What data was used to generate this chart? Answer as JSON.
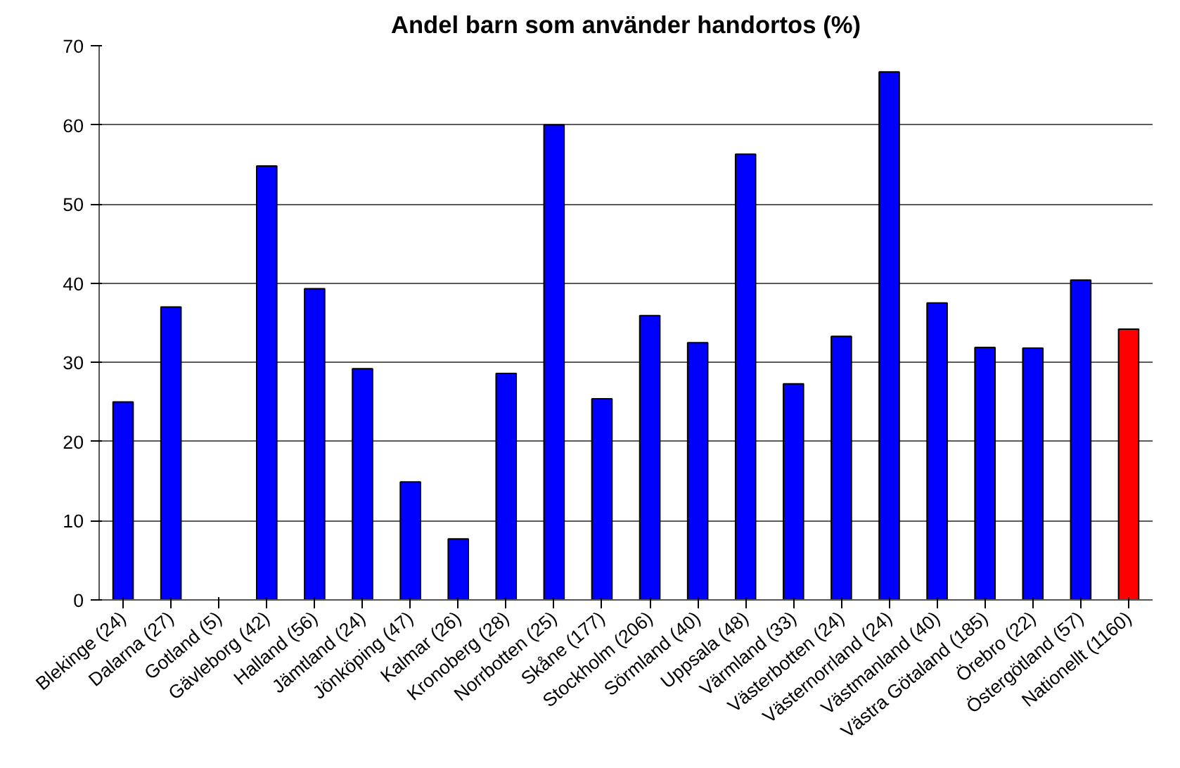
{
  "chart_data": {
    "type": "bar",
    "title": "Andel barn som använder handortos (%)",
    "categories": [
      "Blekinge (24)",
      "Dalarna (27)",
      "Gotland (5)",
      "Gävleborg (42)",
      "Halland (56)",
      "Jämtland (24)",
      "Jönköping (47)",
      "Kalmar (26)",
      "Kronoberg (28)",
      "Norrbotten (25)",
      "Skåne (177)",
      "Stockholm (206)",
      "Sörmland (40)",
      "Uppsala (48)",
      "Värmland (33)",
      "Västerbotten (24)",
      "Västernorrland (24)",
      "Västmanland (40)",
      "Västra Götaland (185)",
      "Örebro (22)",
      "Östergötland (57)",
      "Nationellt (1160)"
    ],
    "values": [
      25,
      37,
      null,
      54.8,
      39.3,
      29.2,
      14.9,
      7.7,
      28.6,
      60,
      25.4,
      35.9,
      32.5,
      56.3,
      27.3,
      33.3,
      66.7,
      37.5,
      31.9,
      31.8,
      40.4,
      34.2
    ],
    "colors": [
      "#0000ff",
      "#0000ff",
      "#0000ff",
      "#0000ff",
      "#0000ff",
      "#0000ff",
      "#0000ff",
      "#0000ff",
      "#0000ff",
      "#0000ff",
      "#0000ff",
      "#0000ff",
      "#0000ff",
      "#0000ff",
      "#0000ff",
      "#0000ff",
      "#0000ff",
      "#0000ff",
      "#0000ff",
      "#0000ff",
      "#0000ff",
      "#ff0000"
    ],
    "ylim": [
      0,
      70
    ],
    "yticks": [
      0,
      10,
      20,
      30,
      40,
      50,
      60,
      70
    ],
    "grid": "y"
  }
}
